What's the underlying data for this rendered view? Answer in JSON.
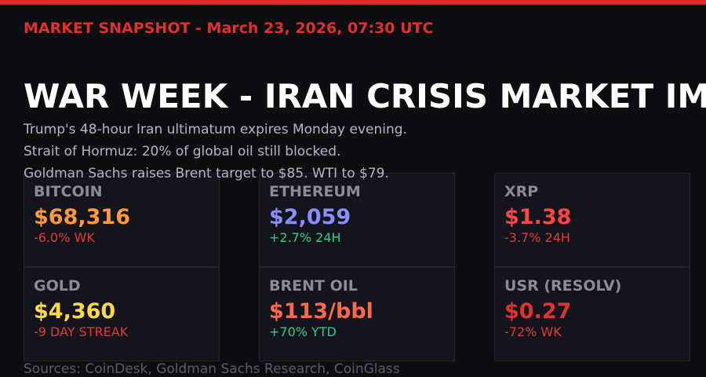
{
  "header": {
    "snapshot": "MARKET SNAPSHOT - March 23, 2026, 07:30 UTC",
    "title": "WAR WEEK - IRAN CRISIS MARKET IM"
  },
  "summary": [
    "Trump's 48-hour Iran ultimatum expires Monday evening.",
    "Strait of Hormuz: 20% of global oil still blocked.",
    "Goldman Sachs raises Brent target to $85. WTI to $79."
  ],
  "cards": [
    {
      "label": "BITCOIN",
      "value": "$68,316",
      "change": "-6.0% WK"
    },
    {
      "label": "ETHEREUM",
      "value": "$2,059",
      "change": "+2.7% 24H"
    },
    {
      "label": "XRP",
      "value": "$1.38",
      "change": "-3.7% 24H"
    },
    {
      "label": "GOLD",
      "value": "$4,360",
      "change": "-9 DAY STREAK"
    },
    {
      "label": "BRENT OIL",
      "value": "$113/bbl",
      "change": "+70% YTD"
    },
    {
      "label": "USR (RESOLV)",
      "value": "$0.27",
      "change": "-72% WK"
    }
  ],
  "footer": {
    "sources": "Sources: CoinDesk, Goldman Sachs Research, CoinGlass"
  }
}
